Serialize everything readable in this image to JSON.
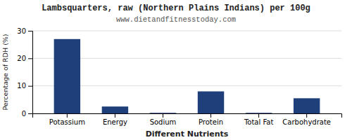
{
  "chart_data": {
    "type": "bar",
    "title": "Lambsquarters, raw (Northern Plains Indians) per 100g",
    "subtitle": "www.dietandfitnesstoday.com",
    "xlabel": "Different Nutrients",
    "ylabel": "Percentage of RDH (%)",
    "categories": [
      "Potassium",
      "Energy",
      "Sodium",
      "Protein",
      "Total Fat",
      "Carbohydrate"
    ],
    "values": [
      27,
      2.5,
      0.2,
      8,
      0.2,
      5.5
    ],
    "color": "#1f3f7a",
    "ylim": [
      0,
      30
    ],
    "yticks": [
      0,
      10,
      20,
      30
    ],
    "grid": true
  }
}
